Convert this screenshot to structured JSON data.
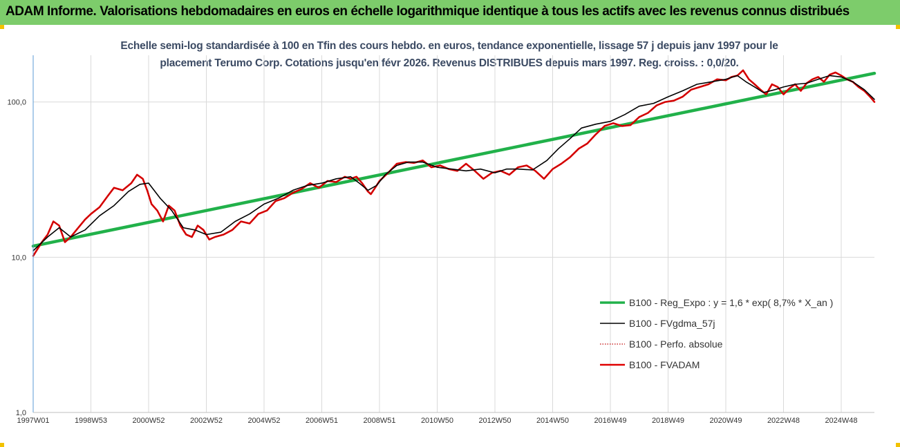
{
  "header": {
    "title": "ADAM Informe. Valorisations hebdomadaires en euros en échelle logarithmique identique à tous les actifs avec les revenus connus distribués"
  },
  "chart_data": {
    "type": "line",
    "title_line1": "Echelle semi-log standardisée à 100 en Tfin des cours hebdo. en euros, tendance exponentielle, lissage 57 j depuis janv 1997 pour le",
    "title_line2": "placement Terumo Corp. Cotations jusqu'en févr 2026. Revenus DISTRIBUES depuis mars 1997.  Reg. croiss. : 0,0/20.",
    "y_scale": "log",
    "ylim": [
      1,
      200
    ],
    "x_range_years": [
      1997.0,
      2026.15
    ],
    "y_ticks": [
      {
        "value": 1,
        "label": "1,0"
      },
      {
        "value": 10,
        "label": "10,0"
      },
      {
        "value": 100,
        "label": "100,0"
      }
    ],
    "x_ticks": [
      {
        "year": 1997.0,
        "label": "1997W01"
      },
      {
        "year": 1999.0,
        "label": "1998W53"
      },
      {
        "year": 2001.0,
        "label": "2000W52"
      },
      {
        "year": 2003.0,
        "label": "2002W52"
      },
      {
        "year": 2005.0,
        "label": "2004W52"
      },
      {
        "year": 2007.0,
        "label": "2006W51"
      },
      {
        "year": 2009.0,
        "label": "2008W51"
      },
      {
        "year": 2011.0,
        "label": "2010W50"
      },
      {
        "year": 2013.0,
        "label": "2012W50"
      },
      {
        "year": 2015.0,
        "label": "2014W50"
      },
      {
        "year": 2017.0,
        "label": "2016W49"
      },
      {
        "year": 2019.0,
        "label": "2018W49"
      },
      {
        "year": 2021.0,
        "label": "2020W49"
      },
      {
        "year": 2023.0,
        "label": "2022W48"
      },
      {
        "year": 2025.0,
        "label": "2024W48"
      }
    ],
    "grid": true,
    "legend_position": "bottom-right",
    "colors": {
      "reg": "#21b14a",
      "smooth": "#000000",
      "perfo": "#c00000",
      "fvadam": "#e00000",
      "grid": "#d9d9d9",
      "axis": "#5b9bd5"
    },
    "series": [
      {
        "name": "B100 - Reg_Expo : y = 1,6 * exp( 8,7% *  X_an )",
        "style": "solid-green-thick",
        "x": [
          1997.0,
          2026.15
        ],
        "y": [
          11.8,
          153
        ]
      },
      {
        "name": "B100 - FVgdma_57j",
        "style": "solid-black-thin",
        "x": [
          1997.0,
          1997.5,
          1997.9,
          1998.3,
          1998.8,
          1999.3,
          1999.8,
          2000.3,
          2000.7,
          2001.0,
          2001.4,
          2001.8,
          2002.2,
          2002.6,
          2003.0,
          2003.5,
          2004.0,
          2004.5,
          2005.0,
          2005.5,
          2006.0,
          2006.5,
          2007.0,
          2007.5,
          2008.0,
          2008.3,
          2008.6,
          2008.9,
          2009.2,
          2009.6,
          2010.0,
          2010.5,
          2011.0,
          2011.5,
          2012.0,
          2012.5,
          2013.0,
          2013.4,
          2013.8,
          2014.3,
          2014.8,
          2015.2,
          2015.6,
          2016.0,
          2016.5,
          2017.0,
          2017.5,
          2018.0,
          2018.5,
          2019.0,
          2019.5,
          2020.0,
          2020.5,
          2021.0,
          2021.4,
          2021.7,
          2022.0,
          2022.3,
          2022.7,
          2023.0,
          2023.4,
          2023.8,
          2024.2,
          2024.6,
          2025.0,
          2025.4,
          2025.8,
          2026.15
        ],
        "y": [
          11.0,
          13.5,
          15.5,
          13.5,
          15.0,
          18.5,
          21.5,
          26.5,
          29.5,
          30.0,
          24.0,
          20.0,
          15.5,
          15.0,
          14.0,
          14.5,
          17.0,
          19.0,
          22.0,
          24.0,
          27.0,
          29.0,
          30.0,
          32.0,
          33.0,
          30.0,
          27.0,
          29.0,
          34.0,
          39.0,
          41.0,
          41.0,
          38.0,
          37.0,
          36.0,
          37.0,
          35.0,
          37.0,
          37.0,
          36.5,
          42.0,
          50.0,
          58.0,
          68.0,
          72.0,
          75.0,
          83.0,
          94.0,
          98.0,
          108.0,
          118.0,
          130.0,
          135.0,
          140.0,
          148.0,
          135.0,
          125.0,
          115.0,
          120.0,
          125.0,
          130.0,
          132.0,
          140.0,
          148.0,
          145.0,
          135.0,
          120.0,
          104.0
        ]
      },
      {
        "name": "B100 - Perfo. absolue",
        "style": "dotted-darkred",
        "x": [
          1997.0,
          1997.3,
          1997.5,
          1997.7,
          1997.9,
          1998.1,
          1998.3,
          1998.5,
          1998.8,
          1999.0,
          1999.3,
          1999.6,
          1999.8,
          2000.1,
          2000.4,
          2000.6,
          2000.8,
          2000.95,
          2001.1,
          2001.3,
          2001.5,
          2001.7,
          2001.9,
          2002.1,
          2002.3,
          2002.5,
          2002.7,
          2002.9,
          2003.1,
          2003.3,
          2003.6,
          2003.9,
          2004.2,
          2004.5,
          2004.8,
          2005.1,
          2005.4,
          2005.7,
          2006.0,
          2006.3,
          2006.6,
          2006.9,
          2007.2,
          2007.5,
          2007.8,
          2008.0,
          2008.2,
          2008.4,
          2008.6,
          2008.7,
          2008.85,
          2009.0,
          2009.3,
          2009.6,
          2009.9,
          2010.2,
          2010.5,
          2010.8,
          2011.1,
          2011.4,
          2011.7,
          2012.0,
          2012.3,
          2012.6,
          2012.9,
          2013.2,
          2013.5,
          2013.8,
          2014.1,
          2014.4,
          2014.7,
          2015.0,
          2015.3,
          2015.6,
          2015.9,
          2016.2,
          2016.5,
          2016.8,
          2017.1,
          2017.4,
          2017.7,
          2018.0,
          2018.3,
          2018.6,
          2018.9,
          2019.2,
          2019.5,
          2019.8,
          2020.1,
          2020.4,
          2020.7,
          2021.0,
          2021.2,
          2021.4,
          2021.6,
          2021.8,
          2022.0,
          2022.2,
          2022.4,
          2022.6,
          2022.8,
          2023.0,
          2023.2,
          2023.4,
          2023.6,
          2023.8,
          2024.0,
          2024.2,
          2024.4,
          2024.6,
          2024.8,
          2025.0,
          2025.2,
          2025.4,
          2025.6,
          2025.8,
          2026.0,
          2026.15
        ],
        "y": [
          10.2,
          12.5,
          14.0,
          17.0,
          16.0,
          12.5,
          13.5,
          15.0,
          17.5,
          19.0,
          21.0,
          25.0,
          28.0,
          27.0,
          30.0,
          34.0,
          32.0,
          27.0,
          22.0,
          20.0,
          17.0,
          21.5,
          20.0,
          16.0,
          14.0,
          13.5,
          16.0,
          15.0,
          13.0,
          13.5,
          14.0,
          15.0,
          17.0,
          16.5,
          19.0,
          20.0,
          23.0,
          24.0,
          26.0,
          27.5,
          30.0,
          28.0,
          31.0,
          30.5,
          33.0,
          32.0,
          33.0,
          30.0,
          26.5,
          25.5,
          28.0,
          31.0,
          35.0,
          40.0,
          41.0,
          40.5,
          42.0,
          38.0,
          39.0,
          37.0,
          36.0,
          40.0,
          36.0,
          32.0,
          35.0,
          36.0,
          34.0,
          38.0,
          39.0,
          36.0,
          32.0,
          37.0,
          40.0,
          44.0,
          50.0,
          54.0,
          62.0,
          70.0,
          73.0,
          70.0,
          71.0,
          80.0,
          85.0,
          95.0,
          100.0,
          102.0,
          108.0,
          120.0,
          125.0,
          130.0,
          140.0,
          138.0,
          145.0,
          148.0,
          160.0,
          140.0,
          130.0,
          120.0,
          112.0,
          130.0,
          125.0,
          112.0,
          122.0,
          130.0,
          118.0,
          132.0,
          140.0,
          145.0,
          135.0,
          150.0,
          155.0,
          148.0,
          140.0,
          135.0,
          125.0,
          118.0,
          108.0,
          100.0
        ]
      },
      {
        "name": "B100 - FVADAM",
        "style": "solid-red-thick",
        "x": [
          1997.0,
          1997.3,
          1997.5,
          1997.7,
          1997.9,
          1998.1,
          1998.3,
          1998.5,
          1998.8,
          1999.0,
          1999.3,
          1999.6,
          1999.8,
          2000.1,
          2000.4,
          2000.6,
          2000.8,
          2000.95,
          2001.1,
          2001.3,
          2001.5,
          2001.7,
          2001.9,
          2002.1,
          2002.3,
          2002.5,
          2002.7,
          2002.9,
          2003.1,
          2003.3,
          2003.6,
          2003.9,
          2004.2,
          2004.5,
          2004.8,
          2005.1,
          2005.4,
          2005.7,
          2006.0,
          2006.3,
          2006.6,
          2006.9,
          2007.2,
          2007.5,
          2007.8,
          2008.0,
          2008.2,
          2008.4,
          2008.6,
          2008.7,
          2008.85,
          2009.0,
          2009.3,
          2009.6,
          2009.9,
          2010.2,
          2010.5,
          2010.8,
          2011.1,
          2011.4,
          2011.7,
          2012.0,
          2012.3,
          2012.6,
          2012.9,
          2013.2,
          2013.5,
          2013.8,
          2014.1,
          2014.4,
          2014.7,
          2015.0,
          2015.3,
          2015.6,
          2015.9,
          2016.2,
          2016.5,
          2016.8,
          2017.1,
          2017.4,
          2017.7,
          2018.0,
          2018.3,
          2018.6,
          2018.9,
          2019.2,
          2019.5,
          2019.8,
          2020.1,
          2020.4,
          2020.7,
          2021.0,
          2021.2,
          2021.4,
          2021.6,
          2021.8,
          2022.0,
          2022.2,
          2022.4,
          2022.6,
          2022.8,
          2023.0,
          2023.2,
          2023.4,
          2023.6,
          2023.8,
          2024.0,
          2024.2,
          2024.4,
          2024.6,
          2024.8,
          2025.0,
          2025.2,
          2025.4,
          2025.6,
          2025.8,
          2026.0,
          2026.15
        ],
        "y": [
          10.2,
          12.5,
          14.0,
          17.0,
          16.0,
          12.5,
          13.5,
          15.0,
          17.5,
          19.0,
          21.0,
          25.0,
          28.0,
          27.0,
          30.0,
          34.0,
          32.0,
          27.0,
          22.0,
          20.0,
          17.0,
          21.5,
          20.0,
          16.0,
          14.0,
          13.5,
          16.0,
          15.0,
          13.0,
          13.5,
          14.0,
          15.0,
          17.0,
          16.5,
          19.0,
          20.0,
          23.0,
          24.0,
          26.0,
          27.5,
          30.0,
          28.0,
          31.0,
          30.5,
          33.0,
          32.0,
          33.0,
          30.0,
          26.5,
          25.5,
          28.0,
          31.0,
          35.0,
          40.0,
          41.0,
          40.5,
          42.0,
          38.0,
          39.0,
          37.0,
          36.0,
          40.0,
          36.0,
          32.0,
          35.0,
          36.0,
          34.0,
          38.0,
          39.0,
          36.0,
          32.0,
          37.0,
          40.0,
          44.0,
          50.0,
          54.0,
          62.0,
          70.0,
          73.0,
          70.0,
          71.0,
          80.0,
          85.0,
          95.0,
          100.0,
          102.0,
          108.0,
          120.0,
          125.0,
          130.0,
          140.0,
          138.0,
          145.0,
          148.0,
          160.0,
          140.0,
          130.0,
          120.0,
          112.0,
          130.0,
          125.0,
          112.0,
          122.0,
          130.0,
          118.0,
          132.0,
          140.0,
          145.0,
          135.0,
          150.0,
          155.0,
          148.0,
          140.0,
          135.0,
          125.0,
          118.0,
          108.0,
          100.0
        ]
      }
    ]
  }
}
